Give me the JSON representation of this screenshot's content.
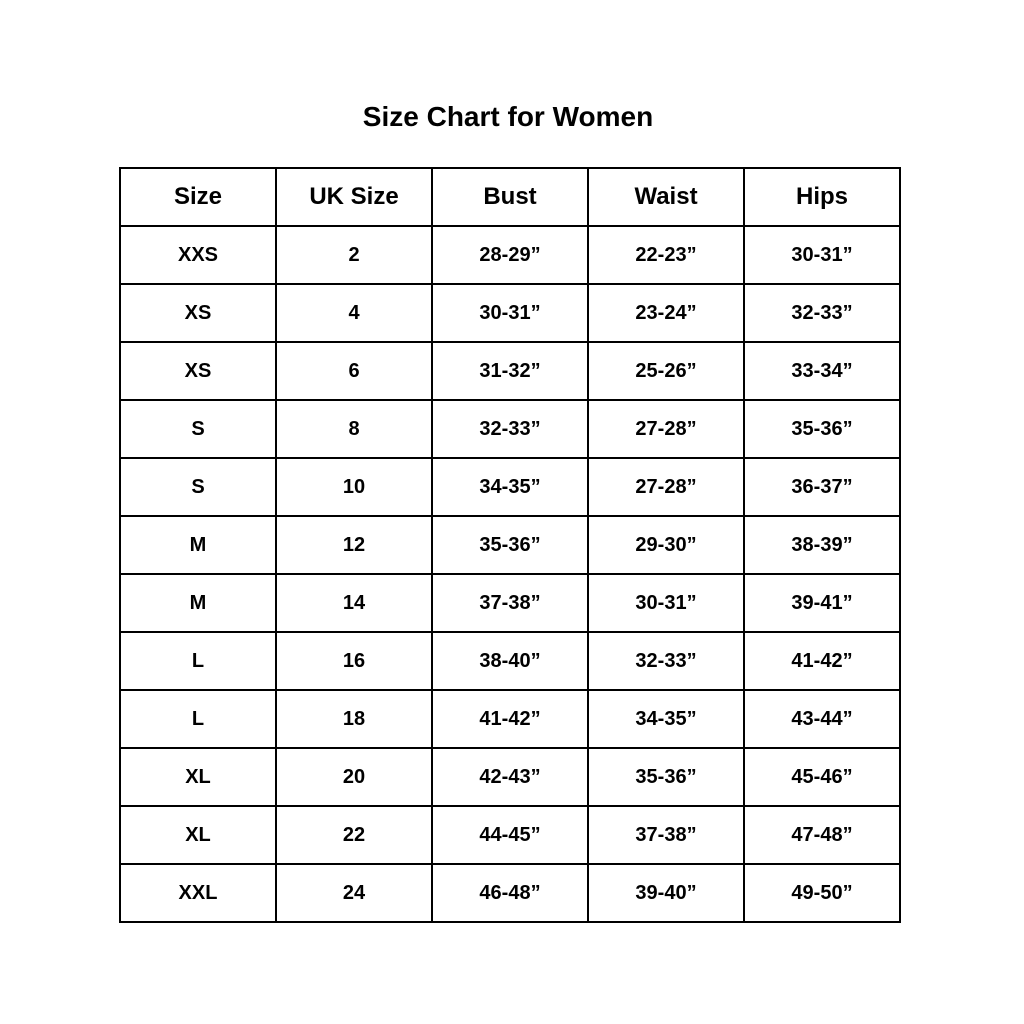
{
  "title": "Size Chart for Women",
  "table": {
    "headers": [
      "Size",
      "UK Size",
      "Bust",
      "Waist",
      "Hips"
    ],
    "rows": [
      [
        "XXS",
        "2",
        "28-29”",
        "22-23”",
        "30-31”"
      ],
      [
        "XS",
        "4",
        "30-31”",
        "23-24”",
        "32-33”"
      ],
      [
        "XS",
        "6",
        "31-32”",
        "25-26”",
        "33-34”"
      ],
      [
        "S",
        "8",
        "32-33”",
        "27-28”",
        "35-36”"
      ],
      [
        "S",
        "10",
        "34-35”",
        "27-28”",
        "36-37”"
      ],
      [
        "M",
        "12",
        "35-36”",
        "29-30”",
        "38-39”"
      ],
      [
        "M",
        "14",
        "37-38”",
        "30-31”",
        "39-41”"
      ],
      [
        "L",
        "16",
        "38-40”",
        "32-33”",
        "41-42”"
      ],
      [
        "L",
        "18",
        "41-42”",
        "34-35”",
        "43-44”"
      ],
      [
        "XL",
        "20",
        "42-43”",
        "35-36”",
        "45-46”"
      ],
      [
        "XL",
        "22",
        "44-45”",
        "37-38”",
        "47-48”"
      ],
      [
        "XXL",
        "24",
        "46-48”",
        "39-40”",
        "49-50”"
      ]
    ]
  }
}
